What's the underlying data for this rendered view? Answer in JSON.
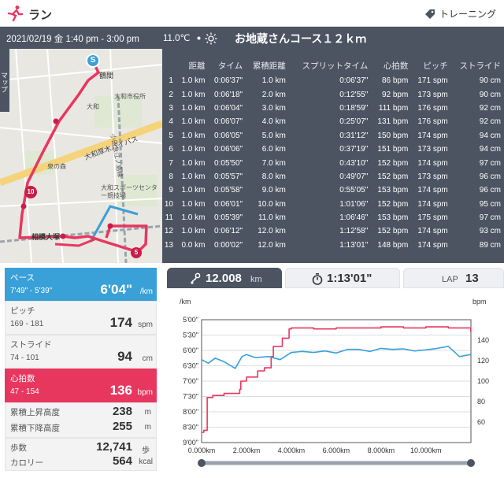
{
  "header": {
    "title": "ラン",
    "training_label": "トレーニング"
  },
  "subheader": {
    "date_time": "2021/02/19 金 1:40 pm - 3:00 pm",
    "temperature": "11.0℃",
    "course_name": "お地蔵さんコース１２ｋｍ"
  },
  "map": {
    "side_tab": "マップ",
    "start_marker": "S",
    "km_markers": [
      "10",
      "5"
    ],
    "labels": [
      "鶴間",
      "大和市役所",
      "大和厚木バイパス",
      "大和スポーツセンター競技場",
      "相模大塚",
      "大和",
      "小田急江ノ島線",
      "泉の森"
    ],
    "colors": {
      "route": "#e8375f",
      "start": "#3aa0d8"
    }
  },
  "laps": {
    "headers": [
      "",
      "距離",
      "タイム",
      "累積距離",
      "スプリットタイム",
      "心拍数",
      "ピッチ",
      "ストライド"
    ],
    "rows": [
      [
        "1",
        "1.0 km",
        "0:06'37\"",
        "1.0 km",
        "0:06'37\"",
        "86 bpm",
        "171 spm",
        "90 cm"
      ],
      [
        "2",
        "1.0 km",
        "0:06'18\"",
        "2.0 km",
        "0:12'55\"",
        "92 bpm",
        "173 spm",
        "90 cm"
      ],
      [
        "3",
        "1.0 km",
        "0:06'04\"",
        "3.0 km",
        "0:18'59\"",
        "111 bpm",
        "176 spm",
        "92 cm"
      ],
      [
        "4",
        "1.0 km",
        "0:06'07\"",
        "4.0 km",
        "0:25'07\"",
        "131 bpm",
        "176 spm",
        "92 cm"
      ],
      [
        "5",
        "1.0 km",
        "0:06'05\"",
        "5.0 km",
        "0:31'12\"",
        "150 bpm",
        "174 spm",
        "94 cm"
      ],
      [
        "6",
        "1.0 km",
        "0:06'06\"",
        "6.0 km",
        "0:37'19\"",
        "151 bpm",
        "173 spm",
        "94 cm"
      ],
      [
        "7",
        "1.0 km",
        "0:05'50\"",
        "7.0 km",
        "0:43'10\"",
        "152 bpm",
        "174 spm",
        "97 cm"
      ],
      [
        "8",
        "1.0 km",
        "0:05'57\"",
        "8.0 km",
        "0:49'07\"",
        "152 bpm",
        "173 spm",
        "96 cm"
      ],
      [
        "9",
        "1.0 km",
        "0:05'58\"",
        "9.0 km",
        "0:55'05\"",
        "153 bpm",
        "174 spm",
        "96 cm"
      ],
      [
        "10",
        "1.0 km",
        "0:06'01\"",
        "10.0 km",
        "1:01'06\"",
        "152 bpm",
        "174 spm",
        "95 cm"
      ],
      [
        "11",
        "1.0 km",
        "0:05'39\"",
        "11.0 km",
        "1:06'46\"",
        "153 bpm",
        "175 spm",
        "97 cm"
      ],
      [
        "12",
        "1.0 km",
        "0:06'12\"",
        "12.0 km",
        "1:12'58\"",
        "152 bpm",
        "174 spm",
        "93 cm"
      ],
      [
        "13",
        "0.0 km",
        "0:00'02\"",
        "12.0 km",
        "1:13'01\"",
        "148 bpm",
        "174 spm",
        "89 cm"
      ]
    ]
  },
  "metrics": {
    "pace": {
      "label": "ペース",
      "range": "7'49\" - 5'39\"",
      "value": "6'04\"",
      "unit": "/km"
    },
    "pitch": {
      "label": "ピッチ",
      "range": "169 - 181",
      "value": "174",
      "unit": "spm"
    },
    "stride": {
      "label": "ストライド",
      "range": "74 - 101",
      "value": "94",
      "unit": "cm"
    },
    "heart_rate": {
      "label": "心拍数",
      "range": "47 - 154",
      "value": "136",
      "unit": "bpm"
    },
    "ascent": {
      "label": "累積上昇高度",
      "value": "238",
      "unit": "m"
    },
    "descent": {
      "label": "累積下降高度",
      "value": "255",
      "unit": "m"
    },
    "steps": {
      "label": "歩数",
      "value": "12,741",
      "unit": "歩"
    },
    "calories": {
      "label": "カロリー",
      "value": "564",
      "unit": "kcal"
    },
    "colors": {
      "pace": "#3aa0d8",
      "heart_rate": "#e8375f"
    }
  },
  "tabs": {
    "distance": {
      "value": "12.008",
      "unit": "km"
    },
    "time": {
      "value": "1:13'01\""
    },
    "lap": {
      "label": "LAP",
      "value": "13"
    }
  },
  "chart_data": {
    "type": "line",
    "left_axis_unit": "/km",
    "right_axis_unit": "bpm",
    "left_ticks": [
      "5'00\"",
      "5'30\"",
      "6'00\"",
      "6'30\"",
      "7'00\"",
      "7'30\"",
      "8'00\"",
      "8'30\"",
      "9'00\""
    ],
    "left_range_seconds_per_km": [
      300,
      540
    ],
    "right_ticks": [
      "140",
      "120",
      "100",
      "80",
      "60"
    ],
    "right_range_bpm": [
      40,
      160
    ],
    "x_ticks": [
      "0.000km",
      "2.000km",
      "4.000km",
      "6.000km",
      "8.000km",
      "10.000km"
    ],
    "x_range_km": [
      0,
      12.008
    ],
    "grid": true,
    "series": [
      {
        "color": "#e8375f",
        "axis": "right",
        "x": [
          0,
          0.1,
          0.25,
          0.5,
          1.0,
          1.5,
          1.7,
          1.75,
          2.0,
          2.5,
          2.8,
          3.1,
          3.2,
          3.4,
          3.6,
          3.9,
          4.0,
          5.0,
          6.0,
          7.0,
          8.0,
          9.0,
          10.0,
          11.0,
          11.8,
          12.0
        ],
        "values": [
          50,
          52,
          84,
          86,
          88,
          88,
          92,
          100,
          104,
          110,
          113,
          124,
          134,
          134,
          142,
          151,
          152,
          151,
          152,
          152,
          153,
          152,
          153,
          152,
          152,
          148
        ]
      },
      {
        "color": "#3aa0d8",
        "axis": "left",
        "x": [
          0,
          0.3,
          0.6,
          1.0,
          1.5,
          1.8,
          2.0,
          2.4,
          3.0,
          3.5,
          4.0,
          4.5,
          5.0,
          5.5,
          6.0,
          6.5,
          7.0,
          7.5,
          8.0,
          8.5,
          9.0,
          9.5,
          10.0,
          10.5,
          11.0,
          11.5,
          12.0
        ],
        "values": [
          378,
          385,
          375,
          382,
          395,
          372,
          368,
          374,
          372,
          378,
          364,
          362,
          364,
          361,
          365,
          358,
          358,
          362,
          356,
          358,
          357,
          361,
          359,
          356,
          352,
          372,
          368
        ]
      }
    ]
  }
}
